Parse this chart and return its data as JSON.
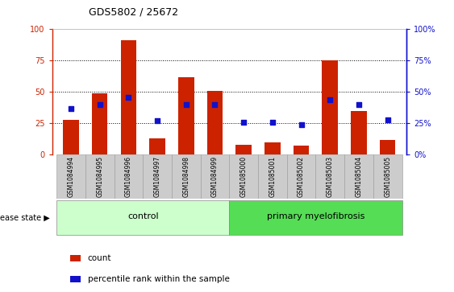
{
  "title": "GDS5802 / 25672",
  "samples": [
    "GSM1084994",
    "GSM1084995",
    "GSM1084996",
    "GSM1084997",
    "GSM1084998",
    "GSM1084999",
    "GSM1085000",
    "GSM1085001",
    "GSM1085002",
    "GSM1085003",
    "GSM1085004",
    "GSM1085005"
  ],
  "counts": [
    28,
    49,
    91,
    13,
    62,
    51,
    8,
    10,
    7,
    75,
    35,
    12
  ],
  "percentiles": [
    37,
    40,
    46,
    27,
    40,
    40,
    26,
    26,
    24,
    44,
    40,
    28
  ],
  "control_indices": [
    0,
    1,
    2,
    3,
    4,
    5
  ],
  "disease_indices": [
    6,
    7,
    8,
    9,
    10,
    11
  ],
  "bar_color": "#cc2200",
  "dot_color": "#1111cc",
  "ylim": [
    0,
    100
  ],
  "yticks": [
    0,
    25,
    50,
    75,
    100
  ],
  "control_label": "control",
  "disease_label": "primary myelofibrosis",
  "disease_state_label": "disease state",
  "legend_count": "count",
  "legend_percentile": "percentile rank within the sample",
  "control_bg": "#ccffcc",
  "disease_bg": "#55dd55",
  "tick_bg": "#cccccc",
  "left_axis_color": "#cc2200",
  "right_axis_color": "#1111cc",
  "bar_width": 0.55,
  "xlim_left": -0.65,
  "xlim_right": 11.65
}
